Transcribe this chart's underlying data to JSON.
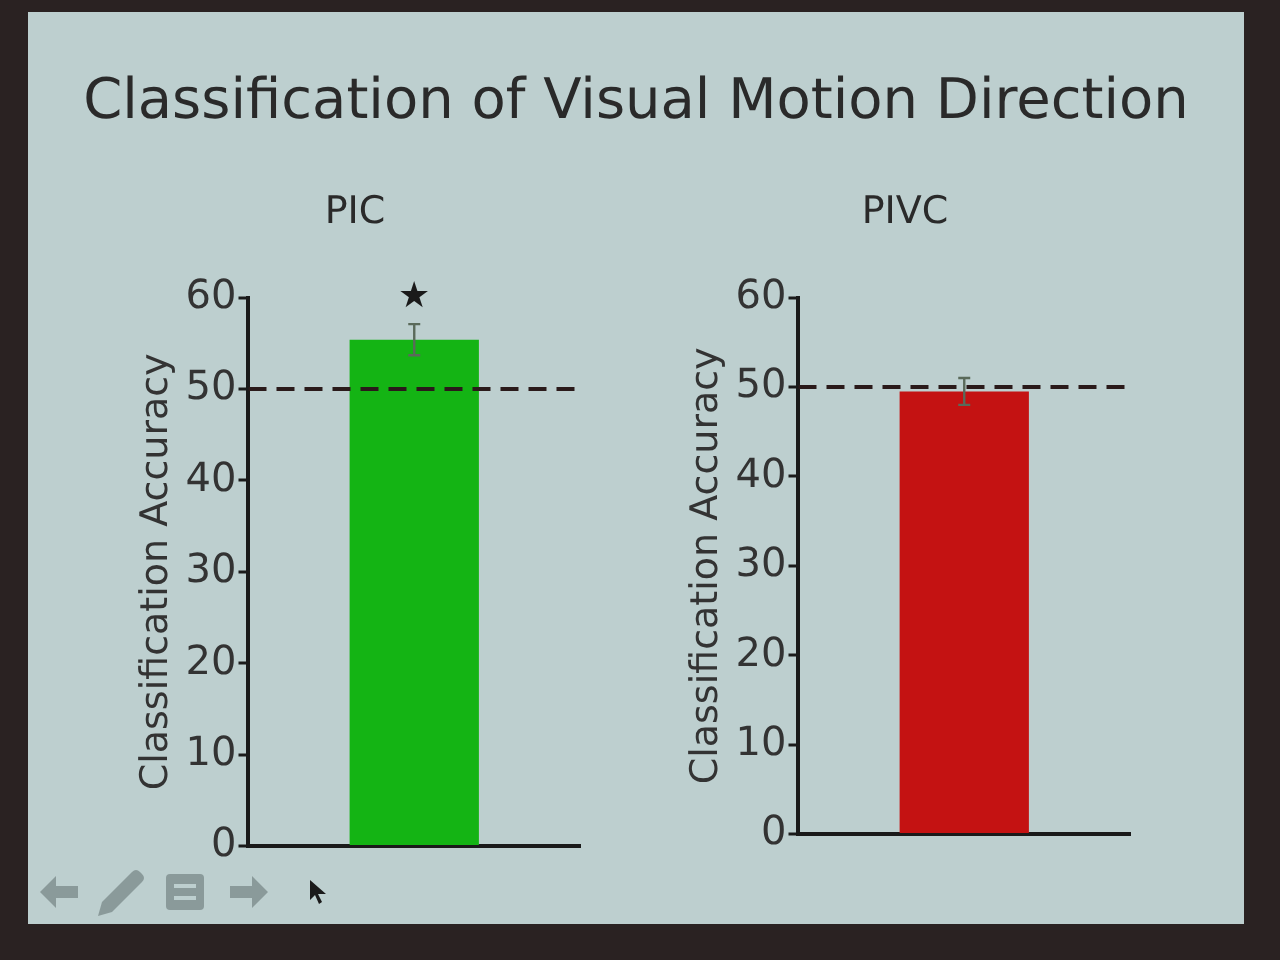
{
  "chart_data": [
    {
      "type": "bar",
      "title": "Classification of Visual Motion Direction",
      "subtitle": "PIC",
      "ylabel": "Classification Accuracy",
      "categories": [
        null
      ],
      "values": [
        55.4
      ],
      "errors": [
        1.7
      ],
      "colors": [
        "#14b414"
      ],
      "ylim": [
        0,
        60
      ],
      "yticks": [
        0,
        10,
        20,
        30,
        40,
        50,
        60
      ],
      "ref_lines": [
        {
          "axis": "y",
          "value": 50,
          "line_style": "dashed",
          "color": "#2a1a1a"
        }
      ],
      "annotations": [
        "★"
      ],
      "tick_labels": "y"
    },
    {
      "type": "bar",
      "subtitle": "PIVC",
      "ylabel": "Classification Accuracy",
      "categories": [
        null
      ],
      "values": [
        49.5
      ],
      "errors": [
        1.5
      ],
      "colors": [
        "#c41212"
      ],
      "ylim": [
        0,
        60
      ],
      "yticks": [
        0,
        10,
        20,
        30,
        40,
        50,
        60
      ],
      "ref_lines": [
        {
          "axis": "y",
          "value": 50,
          "line_style": "dashed",
          "color": "#2a1a1a"
        }
      ],
      "tick_labels": "y"
    }
  ]
}
